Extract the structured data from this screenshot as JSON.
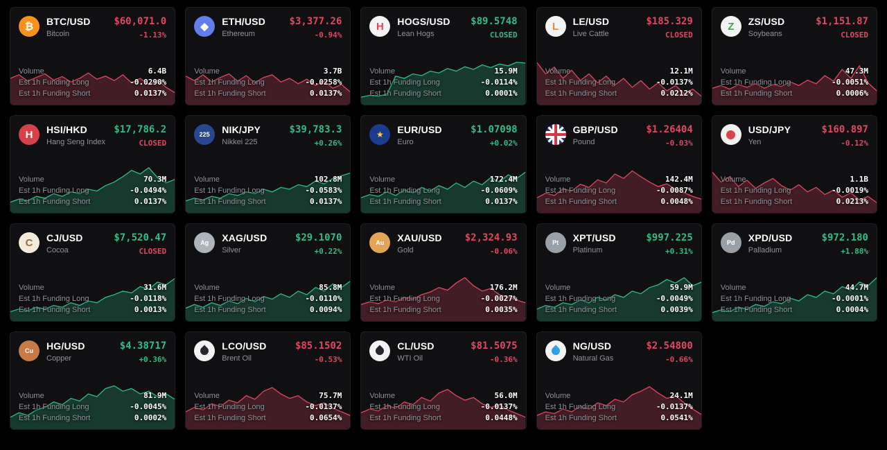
{
  "theme": {
    "bg": "#000000",
    "card_bg": "#101013",
    "card_border": "#1d1e22",
    "text_primary": "#ffffff",
    "text_secondary": "#8f939b",
    "up": "#2ebd85",
    "down": "#e2465f"
  },
  "labels": {
    "volume": "Volume",
    "funding_long": "Est 1h Funding Long",
    "funding_short": "Est 1h Funding Short"
  },
  "cards": [
    {
      "symbol": "BTC/USD",
      "name": "Bitcoin",
      "price": "$60,071.0",
      "change": "-1.13%",
      "price_dir": "down",
      "change_dir": "down",
      "chart_dir": "down",
      "volume": "6.4B",
      "funding_long": "-0.0290%",
      "funding_short": "0.0137%",
      "icon": {
        "name": "bitcoin-icon",
        "type": "glyph",
        "glyph": "₿",
        "bg": "#f7931a",
        "fg": "#ffffff"
      },
      "spark": [
        0.5,
        0.58,
        0.44,
        0.52,
        0.6,
        0.46,
        0.54,
        0.42,
        0.5,
        0.62,
        0.48,
        0.55,
        0.45,
        0.58,
        0.4,
        0.5,
        0.36,
        0.46,
        0.3,
        0.18
      ]
    },
    {
      "symbol": "ETH/USD",
      "name": "Ethereum",
      "price": "$3,377.26",
      "change": "-0.94%",
      "price_dir": "down",
      "change_dir": "down",
      "chart_dir": "down",
      "volume": "3.7B",
      "funding_long": "-0.0258%",
      "funding_short": "0.0137%",
      "icon": {
        "name": "ethereum-icon",
        "type": "glyph",
        "glyph": "◆",
        "bg": "#627eea",
        "fg": "#ffffff"
      },
      "spark": [
        0.55,
        0.45,
        0.58,
        0.42,
        0.52,
        0.6,
        0.44,
        0.56,
        0.4,
        0.52,
        0.58,
        0.42,
        0.5,
        0.38,
        0.48,
        0.34,
        0.44,
        0.28,
        0.36,
        0.2
      ]
    },
    {
      "symbol": "HOGS/USD",
      "name": "Lean Hogs",
      "price": "$89.5748",
      "change": "CLOSED",
      "price_dir": "up",
      "change_dir": "up",
      "chart_dir": "up",
      "volume": "15.9M",
      "funding_long": "-0.0114%",
      "funding_short": "0.0001%",
      "icon": {
        "name": "lean-hogs-icon",
        "type": "glyph",
        "glyph": "H",
        "bg": "#f3f3f3",
        "fg": "#e2465f"
      },
      "spark": [
        0.08,
        0.12,
        0.1,
        0.15,
        0.55,
        0.5,
        0.6,
        0.56,
        0.66,
        0.62,
        0.72,
        0.66,
        0.76,
        0.7,
        0.8,
        0.74,
        0.82,
        0.78,
        0.86,
        0.84
      ]
    },
    {
      "symbol": "LE/USD",
      "name": "Live Cattle",
      "price": "$185.329",
      "change": "CLOSED",
      "price_dir": "down",
      "change_dir": "down",
      "chart_dir": "down",
      "volume": "12.1M",
      "funding_long": "-0.0137%",
      "funding_short": "0.0212%",
      "icon": {
        "name": "live-cattle-icon",
        "type": "glyph",
        "glyph": "L",
        "bg": "#f3f3f3",
        "fg": "#d98c3f"
      },
      "spark": [
        0.85,
        0.6,
        0.75,
        0.5,
        0.68,
        0.45,
        0.6,
        0.4,
        0.55,
        0.35,
        0.5,
        0.3,
        0.45,
        0.26,
        0.4,
        0.22,
        0.34,
        0.16,
        0.26,
        0.1
      ]
    },
    {
      "symbol": "ZS/USD",
      "name": "Soybeans",
      "price": "$1,151.87",
      "change": "CLOSED",
      "price_dir": "down",
      "change_dir": "down",
      "chart_dir": "down",
      "volume": "47.3M",
      "funding_long": "-0.0051%",
      "funding_short": "0.0006%",
      "icon": {
        "name": "soybeans-icon",
        "type": "glyph",
        "glyph": "Z",
        "bg": "#f3f3f3",
        "fg": "#3da653"
      },
      "spark": [
        0.28,
        0.34,
        0.26,
        0.36,
        0.3,
        0.38,
        0.28,
        0.36,
        0.32,
        0.42,
        0.34,
        0.46,
        0.38,
        0.56,
        0.44,
        0.7,
        0.5,
        0.78,
        0.4,
        0.22
      ]
    },
    {
      "symbol": "HSI/HKD",
      "name": "Hang Seng Index",
      "price": "$17,786.2",
      "change": "CLOSED",
      "price_dir": "up",
      "change_dir": "down",
      "chart_dir": "up",
      "volume": "70.3M",
      "funding_long": "-0.0494%",
      "funding_short": "0.0137%",
      "icon": {
        "name": "hang-seng-icon",
        "type": "glyph",
        "glyph": "H",
        "bg": "#d8404a",
        "fg": "#ffffff"
      },
      "spark": [
        0.15,
        0.22,
        0.18,
        0.28,
        0.24,
        0.34,
        0.28,
        0.38,
        0.34,
        0.44,
        0.4,
        0.52,
        0.6,
        0.72,
        0.86,
        0.78,
        0.92,
        0.7,
        0.58,
        0.66
      ]
    },
    {
      "symbol": "NIK/JPY",
      "name": "Nikkei 225",
      "price": "$39,783.3",
      "change": "+0.26%",
      "price_dir": "up",
      "change_dir": "up",
      "chart_dir": "up",
      "volume": "102.8M",
      "funding_long": "-0.0583%",
      "funding_short": "0.0137%",
      "icon": {
        "name": "nikkei-225-icon",
        "type": "glyph",
        "glyph": "225",
        "bg": "#27488f",
        "fg": "#ffffff"
      },
      "spark": [
        0.18,
        0.24,
        0.2,
        0.28,
        0.24,
        0.34,
        0.3,
        0.38,
        0.34,
        0.44,
        0.38,
        0.48,
        0.44,
        0.54,
        0.5,
        0.62,
        0.56,
        0.68,
        0.74,
        0.8
      ]
    },
    {
      "symbol": "EUR/USD",
      "name": "Euro",
      "price": "$1.07098",
      "change": "+0.02%",
      "price_dir": "up",
      "change_dir": "up",
      "chart_dir": "up",
      "volume": "172.4M",
      "funding_long": "-0.0609%",
      "funding_short": "0.0137%",
      "icon": {
        "name": "eu-flag-icon",
        "type": "eu-flag"
      },
      "spark": [
        0.25,
        0.32,
        0.28,
        0.38,
        0.3,
        0.42,
        0.36,
        0.48,
        0.4,
        0.52,
        0.44,
        0.58,
        0.48,
        0.62,
        0.54,
        0.7,
        0.6,
        0.76,
        0.68,
        0.82
      ]
    },
    {
      "symbol": "GBP/USD",
      "name": "Pound",
      "price": "$1.26404",
      "change": "-0.03%",
      "price_dir": "down",
      "change_dir": "down",
      "chart_dir": "down",
      "volume": "142.4M",
      "funding_long": "-0.0087%",
      "funding_short": "0.0048%",
      "icon": {
        "name": "uk-flag-icon",
        "type": "uk-flag"
      },
      "spark": [
        0.25,
        0.35,
        0.3,
        0.45,
        0.4,
        0.55,
        0.48,
        0.65,
        0.58,
        0.78,
        0.68,
        0.85,
        0.72,
        0.6,
        0.5,
        0.56,
        0.44,
        0.36,
        0.28,
        0.22
      ]
    },
    {
      "symbol": "USD/JPY",
      "name": "Yen",
      "price": "$160.897",
      "change": "-0.12%",
      "price_dir": "down",
      "change_dir": "down",
      "chart_dir": "down",
      "volume": "1.1B",
      "funding_long": "-0.0019%",
      "funding_short": "0.0213%",
      "icon": {
        "name": "japan-flag-icon",
        "type": "jp-flag"
      },
      "spark": [
        0.82,
        0.6,
        0.72,
        0.5,
        0.64,
        0.46,
        0.58,
        0.68,
        0.52,
        0.42,
        0.54,
        0.38,
        0.48,
        0.32,
        0.42,
        0.26,
        0.36,
        0.2,
        0.28,
        0.14
      ]
    },
    {
      "symbol": "CJ/USD",
      "name": "Cocoa",
      "price": "$7,520.47",
      "change": "CLOSED",
      "price_dir": "up",
      "change_dir": "down",
      "chart_dir": "up",
      "volume": "31.6M",
      "funding_long": "-0.0118%",
      "funding_short": "0.0013%",
      "icon": {
        "name": "cocoa-icon",
        "type": "glyph",
        "glyph": "C",
        "bg": "#f3ead9",
        "fg": "#9a6b3f"
      },
      "spark": [
        0.12,
        0.18,
        0.14,
        0.22,
        0.18,
        0.26,
        0.22,
        0.32,
        0.26,
        0.36,
        0.32,
        0.44,
        0.5,
        0.58,
        0.54,
        0.68,
        0.62,
        0.78,
        0.72,
        0.86
      ]
    },
    {
      "symbol": "XAG/USD",
      "name": "Silver",
      "price": "$29.1070",
      "change": "+0.22%",
      "price_dir": "up",
      "change_dir": "up",
      "chart_dir": "up",
      "volume": "85.8M",
      "funding_long": "-0.0110%",
      "funding_short": "0.0094%",
      "icon": {
        "name": "silver-icon",
        "type": "glyph",
        "glyph": "Ag",
        "bg": "#aeb4bc",
        "fg": "#ffffff"
      },
      "spark": [
        0.2,
        0.28,
        0.22,
        0.32,
        0.26,
        0.36,
        0.3,
        0.42,
        0.34,
        0.46,
        0.4,
        0.52,
        0.44,
        0.58,
        0.5,
        0.66,
        0.58,
        0.74,
        0.66,
        0.8
      ]
    },
    {
      "symbol": "XAU/USD",
      "name": "Gold",
      "price": "$2,324.93",
      "change": "-0.06%",
      "price_dir": "down",
      "change_dir": "down",
      "chart_dir": "down",
      "volume": "176.2M",
      "funding_long": "-0.0027%",
      "funding_short": "0.0035%",
      "icon": {
        "name": "gold-icon",
        "type": "glyph",
        "glyph": "Au",
        "bg": "#e3a455",
        "fg": "#ffffff"
      },
      "spark": [
        0.28,
        0.34,
        0.3,
        0.38,
        0.34,
        0.44,
        0.4,
        0.5,
        0.56,
        0.66,
        0.6,
        0.76,
        0.88,
        0.7,
        0.58,
        0.64,
        0.5,
        0.44,
        0.38,
        0.32
      ]
    },
    {
      "symbol": "XPT/USD",
      "name": "Platinum",
      "price": "$997.225",
      "change": "+0.31%",
      "price_dir": "up",
      "change_dir": "up",
      "chart_dir": "up",
      "volume": "59.9M",
      "funding_long": "-0.0049%",
      "funding_short": "0.0039%",
      "icon": {
        "name": "platinum-icon",
        "type": "glyph",
        "glyph": "Pt",
        "bg": "#9aa0a8",
        "fg": "#ffffff"
      },
      "spark": [
        0.18,
        0.26,
        0.22,
        0.32,
        0.28,
        0.38,
        0.32,
        0.44,
        0.38,
        0.5,
        0.44,
        0.58,
        0.52,
        0.66,
        0.72,
        0.84,
        0.76,
        0.88,
        0.7,
        0.78
      ]
    },
    {
      "symbol": "XPD/USD",
      "name": "Palladium",
      "price": "$972.180",
      "change": "+1.88%",
      "price_dir": "up",
      "change_dir": "up",
      "chart_dir": "up",
      "volume": "44.7M",
      "funding_long": "-0.0001%",
      "funding_short": "0.0004%",
      "icon": {
        "name": "palladium-icon",
        "type": "glyph",
        "glyph": "Pd",
        "bg": "#9aa0a8",
        "fg": "#ffffff"
      },
      "spark": [
        0.1,
        0.16,
        0.12,
        0.22,
        0.18,
        0.28,
        0.24,
        0.34,
        0.3,
        0.42,
        0.36,
        0.5,
        0.44,
        0.58,
        0.52,
        0.68,
        0.6,
        0.78,
        0.7,
        0.88
      ]
    },
    {
      "symbol": "HG/USD",
      "name": "Copper",
      "price": "$4.38717",
      "change": "+0.36%",
      "price_dir": "up",
      "change_dir": "up",
      "chart_dir": "up",
      "volume": "81.9M",
      "funding_long": "-0.0045%",
      "funding_short": "0.0002%",
      "icon": {
        "name": "copper-icon",
        "type": "glyph",
        "glyph": "Cu",
        "bg": "#c97a45",
        "fg": "#ffffff"
      },
      "spark": [
        0.18,
        0.28,
        0.22,
        0.34,
        0.4,
        0.52,
        0.46,
        0.6,
        0.54,
        0.7,
        0.64,
        0.82,
        0.88,
        0.76,
        0.82,
        0.7,
        0.76,
        0.64,
        0.7,
        0.58
      ]
    },
    {
      "symbol": "LCO/USD",
      "name": "Brent Oil",
      "price": "$85.1502",
      "change": "-0.53%",
      "price_dir": "down",
      "change_dir": "down",
      "chart_dir": "down",
      "volume": "75.7M",
      "funding_long": "-0.0137%",
      "funding_short": "0.0654%",
      "icon": {
        "name": "brent-oil-icon",
        "type": "drop",
        "bg": "#f3f3f3",
        "fg": "#26262b"
      },
      "spark": [
        0.3,
        0.4,
        0.34,
        0.48,
        0.42,
        0.56,
        0.5,
        0.66,
        0.58,
        0.76,
        0.84,
        0.7,
        0.6,
        0.66,
        0.52,
        0.44,
        0.5,
        0.38,
        0.3,
        0.22
      ]
    },
    {
      "symbol": "CL/USD",
      "name": "WTI Oil",
      "price": "$81.5075",
      "change": "-0.36%",
      "price_dir": "down",
      "change_dir": "down",
      "chart_dir": "down",
      "volume": "56.0M",
      "funding_long": "-0.0137%",
      "funding_short": "0.0448%",
      "icon": {
        "name": "wti-oil-icon",
        "type": "drop",
        "bg": "#f3f3f3",
        "fg": "#26262b"
      },
      "spark": [
        0.28,
        0.36,
        0.32,
        0.44,
        0.38,
        0.52,
        0.46,
        0.62,
        0.54,
        0.72,
        0.8,
        0.66,
        0.56,
        0.62,
        0.48,
        0.4,
        0.46,
        0.34,
        0.26,
        0.18
      ]
    },
    {
      "symbol": "NG/USD",
      "name": "Natural Gas",
      "price": "$2.54800",
      "change": "-0.66%",
      "price_dir": "down",
      "change_dir": "down",
      "chart_dir": "down",
      "volume": "24.1M",
      "funding_long": "-0.0137%",
      "funding_short": "0.0541%",
      "icon": {
        "name": "natural-gas-icon",
        "type": "flame",
        "bg": "#f3f3f3",
        "fg": "#2f9fe8"
      },
      "spark": [
        0.22,
        0.3,
        0.26,
        0.36,
        0.3,
        0.42,
        0.36,
        0.5,
        0.44,
        0.58,
        0.52,
        0.68,
        0.76,
        0.86,
        0.72,
        0.6,
        0.66,
        0.5,
        0.36,
        0.24
      ]
    }
  ]
}
